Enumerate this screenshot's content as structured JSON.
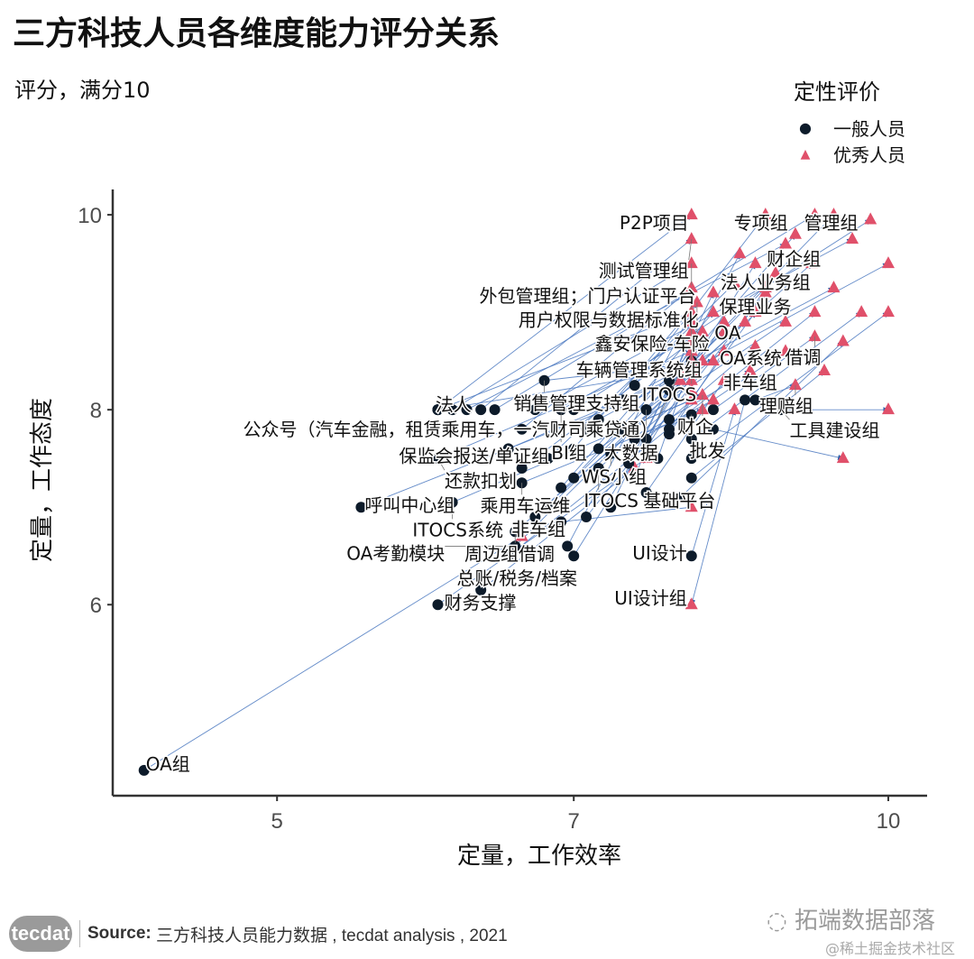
{
  "title": "三方科技人员各维度能力评分关系",
  "subtitle": "评分，满分10",
  "legend": {
    "title": "定性评价",
    "items": [
      {
        "label": "一般人员",
        "shape": "circle",
        "color": "#0d1b2a"
      },
      {
        "label": "优秀人员",
        "shape": "triangle",
        "color": "#e0506a"
      }
    ]
  },
  "footer": {
    "logo": "tecdat",
    "source_label": "Source:",
    "source_text": "三方科技人员能力数据 , tecdat analysis , 2021"
  },
  "watermark": {
    "main": "拓端数据部落",
    "sub": "@稀土掘金技术社区"
  },
  "colors": {
    "normal": "#0d1b2a",
    "excellent": "#e0506a",
    "link": "#4a78c0"
  },
  "chart_data": {
    "type": "scatter",
    "xlabel": "定量，工作效率",
    "ylabel": "定量，工作态度",
    "x_scale": "log",
    "xlim": [
      4.15,
      10.45
    ],
    "ylim": [
      4.04,
      10.26
    ],
    "xticks": [
      5,
      7,
      10
    ],
    "yticks": [
      6,
      8,
      10
    ],
    "grid": false,
    "legend_position": "top-right",
    "series_names": [
      "一般人员",
      "优秀人员"
    ],
    "groups": [
      {
        "label": "P2P项目",
        "normal": [
          6.0,
          8.0
        ],
        "excellent": [
          8.0,
          10.0
        ]
      },
      {
        "label": "专项组",
        "normal": [
          7.5,
          8.25
        ],
        "excellent": [
          8.7,
          10.0
        ]
      },
      {
        "label": "管理组",
        "normal": [
          8.0,
          8.5
        ],
        "excellent": [
          9.4,
          10.0
        ]
      },
      {
        "label": "测试管理组",
        "normal": [
          6.3,
          8.0
        ],
        "excellent": [
          8.0,
          9.75
        ]
      },
      {
        "label": "财企组",
        "normal": [
          7.8,
          8.2
        ],
        "excellent": [
          9.17,
          9.5
        ]
      },
      {
        "label": "外包管理组；门户认证平台",
        "normal": [
          6.1,
          8.0
        ],
        "excellent": [
          8.0,
          9.5
        ]
      },
      {
        "label": "法人业务组",
        "normal": [
          7.6,
          8.0
        ],
        "excellent": [
          8.7,
          9.25
        ]
      },
      {
        "label": "用户权限与数据标准化",
        "normal": [
          6.6,
          7.8
        ],
        "excellent": [
          8.0,
          9.25
        ]
      },
      {
        "label": "鑫安保险-车险",
        "normal": [
          7.0,
          7.6
        ],
        "excellent": [
          8.05,
          9.1
        ]
      },
      {
        "label": "保理业务",
        "normal": [
          7.8,
          7.8
        ],
        "excellent": [
          8.6,
          9.0
        ]
      },
      {
        "label": "车辆管理系统组",
        "normal": [
          6.8,
          7.5
        ],
        "excellent": [
          8.0,
          8.9
        ]
      },
      {
        "label": "OA",
        "normal": [
          7.6,
          7.6
        ],
        "excellent": [
          8.3,
          8.9
        ]
      },
      {
        "label": "借调",
        "normal": [
          8.2,
          8.0
        ],
        "excellent": [
          9.2,
          8.75
        ]
      },
      {
        "label": "ITOCS",
        "normal": [
          7.0,
          7.3
        ],
        "excellent": [
          8.0,
          8.6
        ]
      },
      {
        "label": "OA系统",
        "normal": [
          7.8,
          7.9
        ],
        "excellent": [
          8.6,
          8.65
        ]
      },
      {
        "label": "公众号（汽车金融，租赁乘用车，一汽财司乘贷通）",
        "normal": [
          6.0,
          8.0
        ],
        "excellent": [
          7.9,
          8.4
        ]
      },
      {
        "label": "非车组",
        "normal": [
          7.5,
          7.7
        ],
        "excellent": [
          8.55,
          8.4
        ]
      },
      {
        "label": "销售管理支持组",
        "normal": [
          6.77,
          8.3
        ],
        "excellent": [
          8.2,
          8.5
        ]
      },
      {
        "label": "财企",
        "normal": [
          7.4,
          7.8
        ],
        "excellent": [
          8.1,
          8.15
        ]
      },
      {
        "label": "理赔组",
        "normal": [
          8.6,
          8.1
        ],
        "excellent": [
          9.0,
          8.25
        ]
      },
      {
        "label": "法人",
        "normal": [
          6.0,
          8.0
        ],
        "excellent": [
          8.0,
          9.0
        ]
      },
      {
        "label": "BI组",
        "normal": [
          6.9,
          8.0
        ],
        "excellent": [
          8.1,
          8.8
        ]
      },
      {
        "label": "大数据",
        "normal": [
          7.6,
          8.0
        ],
        "excellent": [
          8.3,
          8.6
        ]
      },
      {
        "label": "批发",
        "normal": [
          8.0,
          7.95
        ],
        "excellent": [
          8.9,
          8.6
        ]
      },
      {
        "label": "工具建设组",
        "normal": [
          8.85,
          8.0
        ],
        "excellent": [
          10.0,
          8.0
        ]
      },
      {
        "label": "保监会报送/单证组",
        "normal": [
          6.5,
          7.6
        ],
        "excellent": [
          8.0,
          8.4
        ]
      },
      {
        "label": "WS小组",
        "normal": [
          7.3,
          7.55
        ],
        "excellent": [
          8.2,
          8.1
        ]
      },
      {
        "label": "还款扣划",
        "normal": [
          6.0,
          7.5
        ],
        "excellent": [
          8.0,
          8.6
        ]
      },
      {
        "label": "ITOCS",
        "normal": [
          7.2,
          7.4
        ],
        "excellent": [
          8.0,
          8.2
        ]
      },
      {
        "label": "乘用车运维",
        "normal": [
          6.6,
          7.25
        ],
        "excellent": [
          8.1,
          8.0
        ]
      },
      {
        "label": "呼叫中心组",
        "normal": [
          5.5,
          7.0
        ],
        "excellent": [
          7.9,
          8.3
        ]
      },
      {
        "label": "ITOCS系统",
        "normal": [
          6.1,
          7.05
        ],
        "excellent": [
          8.0,
          8.1
        ]
      },
      {
        "label": "基础平台",
        "normal": [
          7.6,
          7.15
        ],
        "excellent": [
          8.3,
          8.3
        ]
      },
      {
        "label": "非车组",
        "normal": [
          6.9,
          6.85
        ],
        "excellent": [
          8.0,
          7.0
        ]
      },
      {
        "label": "OA考勤模块",
        "normal": [
          6.55,
          6.6
        ],
        "excellent": [
          8.1,
          8.5
        ]
      },
      {
        "label": "周边组借调",
        "normal": [
          6.55,
          6.75
        ],
        "excellent": [
          8.0,
          8.3
        ]
      },
      {
        "label": "UI设计",
        "normal": [
          8.0,
          6.5
        ],
        "excellent": [
          8.4,
          8.0
        ]
      },
      {
        "label": "总账/税务/档案",
        "normal": [
          6.3,
          6.15
        ],
        "excellent": [
          7.5,
          7.4
        ]
      },
      {
        "label": "财务支撑",
        "normal": [
          6.0,
          6.0
        ],
        "excellent": [
          7.6,
          7.5
        ]
      },
      {
        "label": "UI设计组",
        "normal": [
          8.5,
          8.1
        ],
        "excellent": [
          8.0,
          6.0
        ]
      },
      {
        "label": "OA组",
        "normal": [
          4.3,
          4.3
        ],
        "excellent": [
          6.6,
          6.7
        ]
      },
      {
        "label": "",
        "normal": [
          6.2,
          8.0
        ],
        "excellent": [
          8.9,
          9.7
        ]
      },
      {
        "label": "",
        "normal": [
          6.4,
          8.0
        ],
        "excellent": [
          9.2,
          10.0
        ]
      },
      {
        "label": "",
        "normal": [
          6.7,
          8.0
        ],
        "excellent": [
          9.6,
          9.75
        ]
      },
      {
        "label": "",
        "normal": [
          7.0,
          8.0
        ],
        "excellent": [
          9.8,
          9.95
        ]
      },
      {
        "label": "",
        "normal": [
          7.2,
          7.9
        ],
        "excellent": [
          10.0,
          9.5
        ]
      },
      {
        "label": "",
        "normal": [
          7.4,
          8.1
        ],
        "excellent": [
          9.4,
          9.25
        ]
      },
      {
        "label": "",
        "normal": [
          7.8,
          8.3
        ],
        "excellent": [
          9.0,
          9.8
        ]
      },
      {
        "label": "",
        "normal": [
          8.0,
          7.7
        ],
        "excellent": [
          9.7,
          9.0
        ]
      },
      {
        "label": "",
        "normal": [
          8.0,
          7.5
        ],
        "excellent": [
          10.0,
          9.0
        ]
      },
      {
        "label": "",
        "normal": [
          8.0,
          7.3
        ],
        "excellent": [
          9.3,
          8.4
        ]
      },
      {
        "label": "",
        "normal": [
          7.9,
          7.1
        ],
        "excellent": [
          9.5,
          8.7
        ]
      },
      {
        "label": "",
        "normal": [
          7.8,
          7.75
        ],
        "excellent": [
          8.8,
          9.4
        ]
      },
      {
        "label": "",
        "normal": [
          7.1,
          7.8
        ],
        "excellent": [
          8.4,
          9.3
        ]
      },
      {
        "label": "",
        "normal": [
          6.9,
          7.2
        ],
        "excellent": [
          8.2,
          9.0
        ]
      },
      {
        "label": "",
        "normal": [
          6.8,
          7.0
        ],
        "excellent": [
          8.5,
          8.9
        ]
      },
      {
        "label": "",
        "normal": [
          6.7,
          6.9
        ],
        "excellent": [
          8.3,
          8.8
        ]
      },
      {
        "label": "",
        "normal": [
          7.0,
          6.5
        ],
        "excellent": [
          8.6,
          9.5
        ]
      },
      {
        "label": "",
        "normal": [
          6.95,
          6.6
        ],
        "excellent": [
          8.0,
          9.0
        ]
      },
      {
        "label": "",
        "normal": [
          7.5,
          7.3
        ],
        "excellent": [
          8.0,
          8.8
        ]
      },
      {
        "label": "",
        "normal": [
          7.7,
          7.5
        ],
        "excellent": [
          8.0,
          8.5
        ]
      },
      {
        "label": "",
        "normal": [
          7.3,
          7.0
        ],
        "excellent": [
          8.2,
          9.2
        ]
      },
      {
        "label": "",
        "normal": [
          7.1,
          6.9
        ],
        "excellent": [
          8.7,
          9.2
        ]
      },
      {
        "label": "",
        "normal": [
          7.6,
          7.7
        ],
        "excellent": [
          8.1,
          8.7
        ]
      },
      {
        "label": "",
        "normal": [
          8.2,
          7.8
        ],
        "excellent": [
          9.5,
          7.5
        ]
      },
      {
        "label": "",
        "normal": [
          7.2,
          7.6
        ],
        "excellent": [
          8.9,
          8.9
        ]
      },
      {
        "label": "",
        "normal": [
          6.5,
          6.5
        ],
        "excellent": [
          9.2,
          9.0
        ]
      },
      {
        "label": "",
        "normal": [
          6.6,
          7.4
        ],
        "excellent": [
          8.0,
          8.7
        ]
      },
      {
        "label": "",
        "normal": [
          7.45,
          7.45
        ],
        "excellent": [
          8.45,
          9.6
        ]
      }
    ]
  }
}
